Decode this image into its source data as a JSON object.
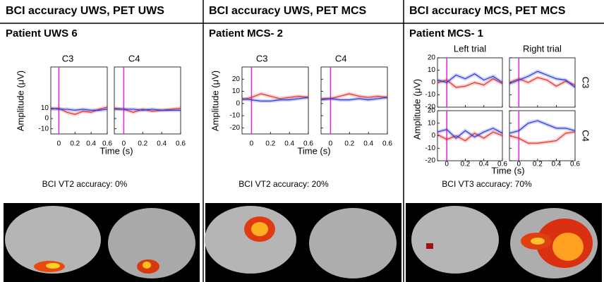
{
  "columns": [
    {
      "header": "BCI accuracy UWS, PET UWS",
      "patient": "Patient UWS 6",
      "ylabel": "Amplitude (μV)",
      "xlabel": "Time (s)",
      "accuracy": "BCI VT2 accuracy: 0%",
      "xlim": [
        -0.1,
        0.6
      ],
      "ylim": [
        -15,
        50
      ],
      "xticks": [
        0,
        0.2,
        0.4,
        0.6
      ],
      "yticks": [
        -10,
        0,
        10
      ],
      "marker_x": 0,
      "x": [
        -0.1,
        0,
        0.1,
        0.2,
        0.3,
        0.4,
        0.5,
        0.6
      ],
      "panels": [
        {
          "title": "C3",
          "series": [
            {
              "color": "#e8302a",
              "values": [
                9,
                10,
                6,
                4,
                7,
                6,
                9,
                11
              ]
            },
            {
              "color": "#2a3ad8",
              "values": [
                10,
                9,
                9,
                8,
                9,
                8,
                8,
                9
              ]
            }
          ]
        },
        {
          "title": "C4",
          "series": [
            {
              "color": "#e8302a",
              "values": [
                10,
                9,
                6,
                9,
                7,
                8,
                9,
                10
              ]
            },
            {
              "color": "#2a3ad8",
              "values": [
                9,
                9,
                9,
                8,
                9,
                8,
                8,
                8
              ]
            }
          ]
        }
      ]
    },
    {
      "header": "BCI accuracy UWS, PET MCS",
      "patient": "Patient MCS- 2",
      "ylabel": "Amplitude (μV)",
      "xlabel": "Time (s)",
      "accuracy": "BCI VT2 accuracy: 20%",
      "xlim": [
        -0.1,
        0.6
      ],
      "ylim": [
        -25,
        30
      ],
      "xticks": [
        0,
        0.2,
        0.4,
        0.6
      ],
      "yticks": [
        -20,
        -10,
        0,
        10,
        20
      ],
      "marker_x": 0,
      "x": [
        -0.1,
        0,
        0.1,
        0.2,
        0.3,
        0.4,
        0.5,
        0.6
      ],
      "panels": [
        {
          "title": "C3",
          "series": [
            {
              "color": "#e8302a",
              "values": [
                3,
                5,
                8,
                6,
                4,
                5,
                6,
                5
              ]
            },
            {
              "color": "#2a3ad8",
              "values": [
                4,
                3,
                2,
                2,
                3,
                3,
                4,
                5
              ]
            }
          ]
        },
        {
          "title": "C4",
          "series": [
            {
              "color": "#e8302a",
              "values": [
                4,
                4,
                6,
                8,
                6,
                5,
                6,
                5
              ]
            },
            {
              "color": "#2a3ad8",
              "values": [
                3,
                4,
                3,
                3,
                4,
                3,
                4,
                5
              ]
            }
          ]
        }
      ]
    },
    {
      "header": "BCI accuracy MCS, PET MCS",
      "patient": "Patient MCS- 1",
      "ylabel": "Amplitude (μV)",
      "xlabel": "Time (s)",
      "accuracy": "BCI VT3 accuracy: 70%",
      "xlim": [
        -0.1,
        0.6
      ],
      "ylim": [
        -20,
        20
      ],
      "xticks": [
        0,
        0.2,
        0.4,
        0.6
      ],
      "yticks": [
        -20,
        -10,
        0,
        10,
        20
      ],
      "marker_x": 0,
      "col_titles": [
        "Left trial",
        "Right trial"
      ],
      "row_labels": [
        "C3",
        "C4"
      ],
      "x": [
        -0.1,
        0,
        0.1,
        0.2,
        0.3,
        0.4,
        0.5,
        0.6
      ],
      "panels": [
        {
          "series": [
            {
              "color": "#e8302a",
              "values": [
                0,
                2,
                -4,
                -3,
                0,
                -2,
                3,
                -1
              ]
            },
            {
              "color": "#2a3ad8",
              "values": [
                2,
                0,
                6,
                3,
                7,
                2,
                5,
                0
              ]
            }
          ]
        },
        {
          "series": [
            {
              "color": "#e8302a",
              "values": [
                0,
                3,
                0,
                4,
                2,
                -3,
                1,
                -2
              ]
            },
            {
              "color": "#2a3ad8",
              "values": [
                -1,
                2,
                5,
                9,
                6,
                3,
                2,
                -4
              ]
            }
          ]
        },
        {
          "series": [
            {
              "color": "#e8302a",
              "values": [
                1,
                -3,
                0,
                -4,
                2,
                -2,
                3,
                0
              ]
            },
            {
              "color": "#2a3ad8",
              "values": [
                3,
                5,
                -2,
                4,
                -1,
                3,
                6,
                2
              ]
            }
          ]
        },
        {
          "series": [
            {
              "color": "#e8302a",
              "values": [
                0,
                -2,
                -6,
                -6,
                -5,
                -4,
                2,
                3
              ]
            },
            {
              "color": "#2a3ad8",
              "values": [
                2,
                4,
                10,
                12,
                9,
                6,
                6,
                4
              ]
            }
          ]
        }
      ]
    }
  ]
}
